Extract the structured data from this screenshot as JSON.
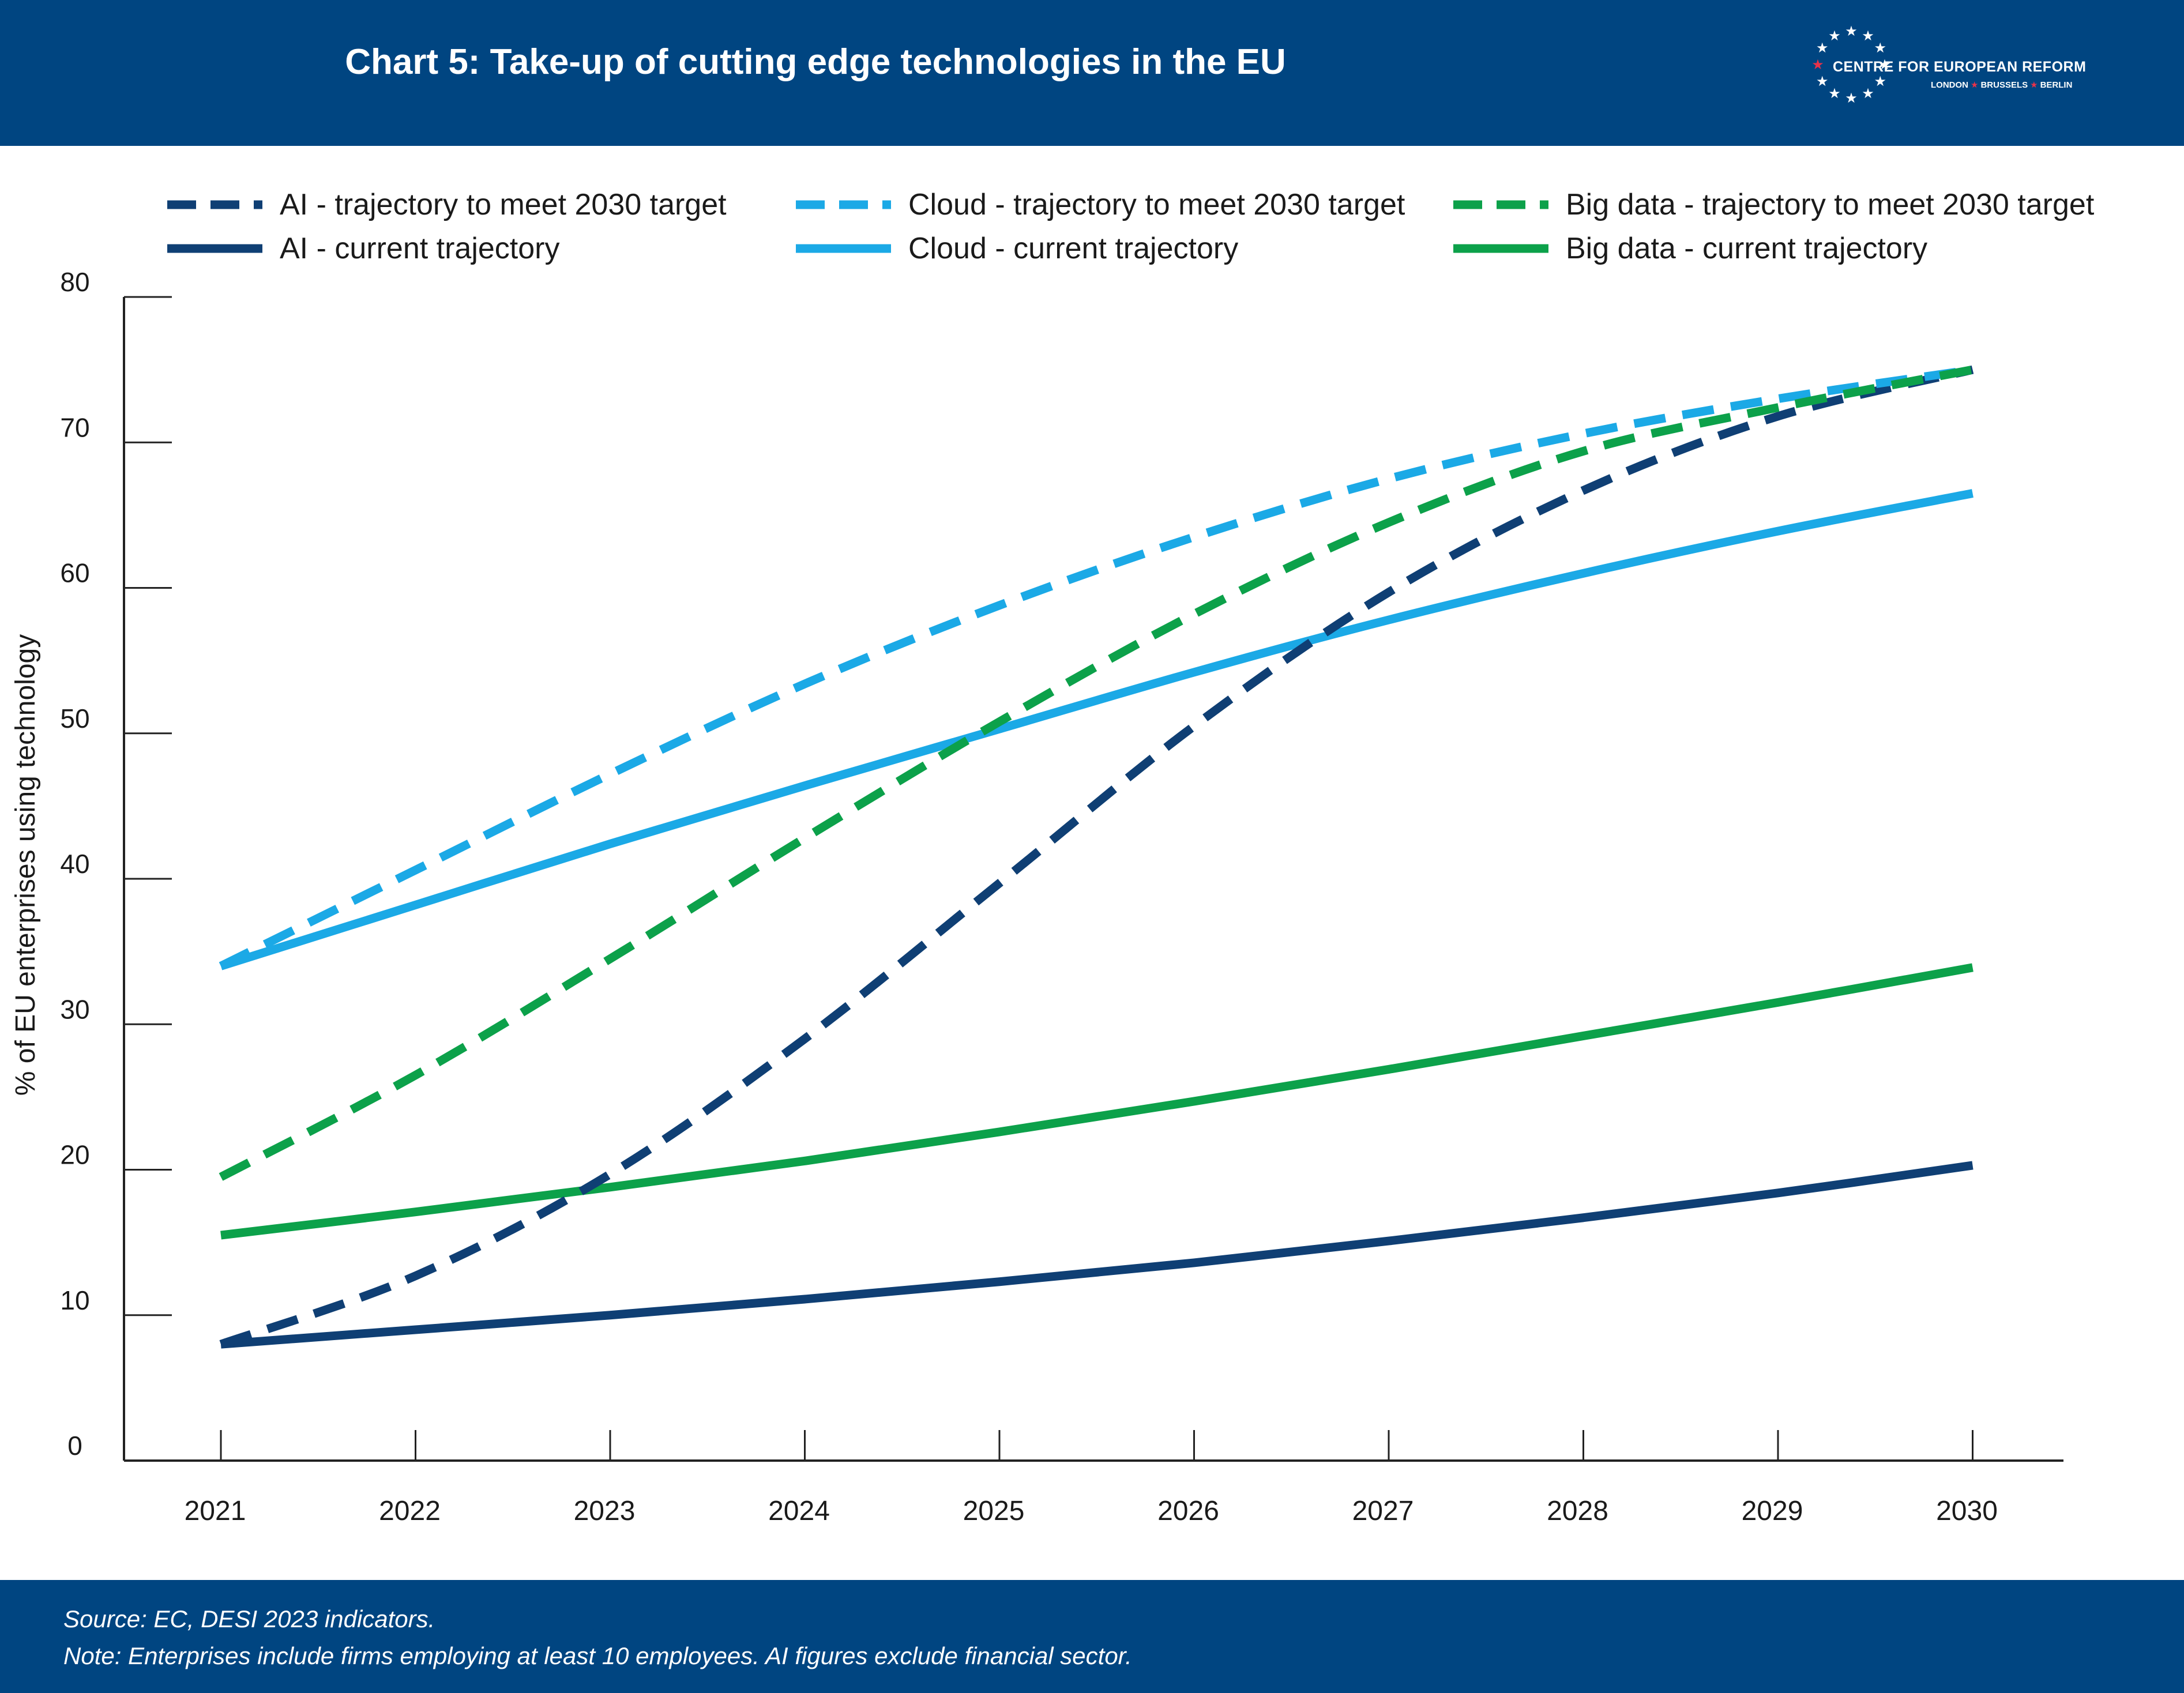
{
  "header": {
    "title": "Chart 5: Take-up of cutting edge technologies in the EU",
    "background": "#004581",
    "logo": {
      "name": "CENTRE FOR EUROPEAN REFORM",
      "cities": [
        "LONDON",
        "BRUSSELS",
        "BERLIN"
      ],
      "star_color": "#ffffff",
      "accent_color": "#e8324a"
    }
  },
  "footer": {
    "source": "Source: EC, DESI 2023 indicators.",
    "note": "Note: Enterprises include firms employing at least 10 employees. AI figures exclude financial sector.",
    "background": "#004581"
  },
  "chart_data": {
    "type": "line",
    "title": "Chart 5: Take-up of cutting edge technologies in the EU",
    "xlabel": "",
    "ylabel": "% of EU enterprises using technology",
    "x": [
      "2021",
      "2022",
      "2023",
      "2024",
      "2025",
      "2026",
      "2027",
      "2028",
      "2029",
      "2030"
    ],
    "ylim": [
      0,
      80
    ],
    "yticks": [
      0,
      10,
      20,
      30,
      40,
      50,
      60,
      70,
      80
    ],
    "grid": false,
    "legend_position": "top",
    "series": [
      {
        "name": "AI - trajectory to meet 2030 target",
        "style": "dashed",
        "color": "#0f3f74",
        "values": [
          8,
          12.7,
          19.7,
          29,
          39.7,
          50.5,
          59.7,
          66.7,
          71.8,
          75
        ]
      },
      {
        "name": "Cloud - trajectory to meet 2030 target",
        "style": "dashed",
        "color": "#1ba9e6",
        "values": [
          34,
          40.6,
          47.2,
          53.4,
          58.8,
          63.5,
          67.5,
          70.6,
          73,
          75
        ]
      },
      {
        "name": "Big data - trajectory to meet 2030 target",
        "style": "dashed",
        "color": "#0ca14a",
        "values": [
          19.5,
          26.5,
          34.5,
          42.8,
          50.8,
          58.2,
          64.5,
          69.4,
          72.4,
          75
        ]
      },
      {
        "name": "AI - current trajectory",
        "style": "solid",
        "color": "#0f3f74",
        "values": [
          8,
          9,
          10,
          11.1,
          12.3,
          13.6,
          15.1,
          16.7,
          18.4,
          20.3
        ]
      },
      {
        "name": "Cloud - current trajectory",
        "style": "solid",
        "color": "#1ba9e6",
        "values": [
          34,
          38.2,
          42.4,
          46.4,
          50.3,
          54.2,
          57.8,
          61,
          63.9,
          66.5
        ]
      },
      {
        "name": "Big data - current trajectory",
        "style": "solid",
        "color": "#0ca14a",
        "values": [
          15.5,
          17.1,
          18.8,
          20.6,
          22.6,
          24.7,
          26.9,
          29.2,
          31.5,
          33.9
        ]
      }
    ]
  }
}
